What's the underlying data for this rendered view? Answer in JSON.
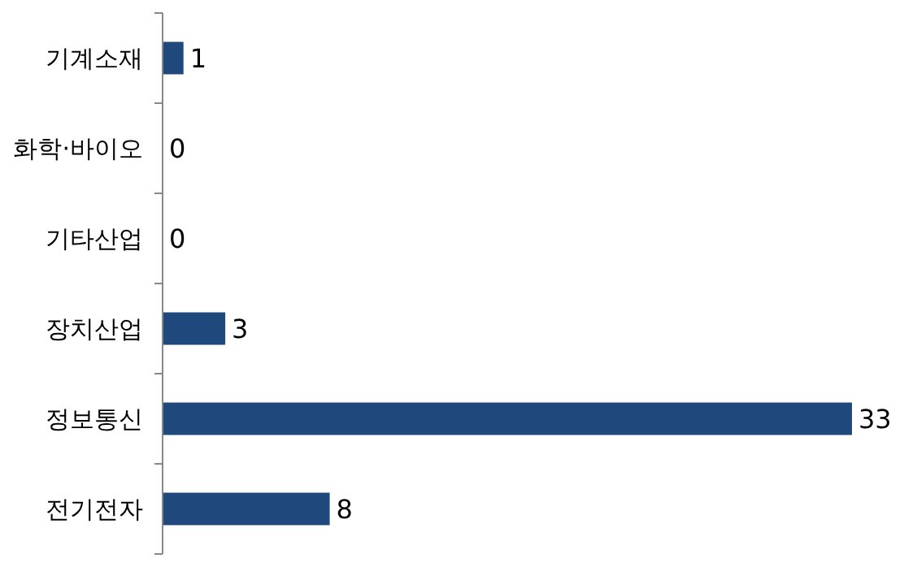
{
  "chart_data": {
    "type": "bar",
    "orientation": "horizontal",
    "categories": [
      "기계소재",
      "화학·바이오",
      "기타산업",
      "장치산업",
      "정보통신",
      "전기전자"
    ],
    "values": [
      1,
      0,
      0,
      3,
      33,
      8
    ],
    "color": "#1f497d",
    "data_labels": true
  }
}
